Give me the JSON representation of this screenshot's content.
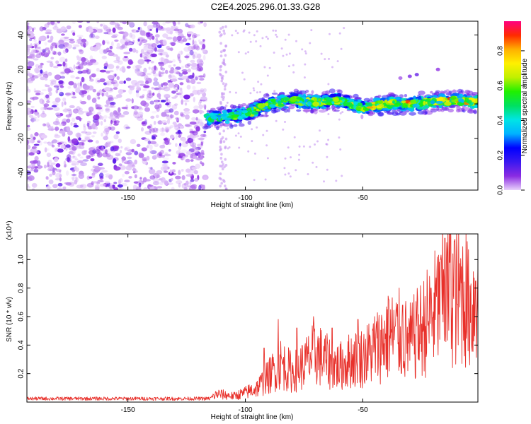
{
  "title": "C2E4.2025.296.01.33.G28",
  "chart_data": [
    {
      "type": "heatmap",
      "xlabel": "Height of straight line (km)",
      "ylabel": "Frequency (Hz)",
      "xlim": [
        -193,
        -1
      ],
      "ylim": [
        -50,
        48
      ],
      "xticks": [
        -150,
        -100,
        -50
      ],
      "yticks": [
        -40,
        -20,
        0,
        20,
        40
      ],
      "ridge": [
        {
          "x": -117,
          "y": -8
        },
        {
          "x": -110,
          "y": -8
        },
        {
          "x": -100,
          "y": -6
        },
        {
          "x": -90,
          "y": 0
        },
        {
          "x": -80,
          "y": 2
        },
        {
          "x": -70,
          "y": 1
        },
        {
          "x": -60,
          "y": 2
        },
        {
          "x": -50,
          "y": -2
        },
        {
          "x": -40,
          "y": 0
        },
        {
          "x": -30,
          "y": 0
        },
        {
          "x": -20,
          "y": 1
        },
        {
          "x": -10,
          "y": 2
        },
        {
          "x": -1,
          "y": 1
        }
      ],
      "colorbar": {
        "label": "Normalized spectral amplitude",
        "range": [
          0,
          0.97
        ],
        "ticks": [
          "0.0",
          "0.2",
          "0.4",
          "0.6",
          "0.8"
        ],
        "stops": [
          "#e9d2fb",
          "#8a2be2",
          "#3a18f0",
          "#0000ff",
          "#00b2ff",
          "#00e5e5",
          "#00e060",
          "#20f000",
          "#c0f000",
          "#fff000",
          "#ffb000",
          "#ff2a00",
          "#ff0080"
        ]
      }
    },
    {
      "type": "line",
      "xlabel": "Height of straight line (km)",
      "ylabel": "SNR (10 * v/v)",
      "scale_label": "(x10⁴)",
      "xlim": [
        -193,
        -1
      ],
      "ylim": [
        0,
        1.18
      ],
      "xticks": [
        -150,
        -100,
        -50
      ],
      "yticks": [
        "0.2",
        "0.4",
        "0.6",
        "0.8",
        "1.0"
      ],
      "series": [
        {
          "name": "SNR",
          "color": "#e8302a",
          "envelope": [
            {
              "x": -193,
              "y": 0.02
            },
            {
              "x": -160,
              "y": 0.03
            },
            {
              "x": -115,
              "y": 0.03
            },
            {
              "x": -112,
              "y": 0.07
            },
            {
              "x": -105,
              "y": 0.05
            },
            {
              "x": -100,
              "y": 0.08
            },
            {
              "x": -95,
              "y": 0.12
            },
            {
              "x": -90,
              "y": 0.22
            },
            {
              "x": -85,
              "y": 0.33
            },
            {
              "x": -80,
              "y": 0.25
            },
            {
              "x": -75,
              "y": 0.32
            },
            {
              "x": -70,
              "y": 0.42
            },
            {
              "x": -65,
              "y": 0.34
            },
            {
              "x": -60,
              "y": 0.3
            },
            {
              "x": -55,
              "y": 0.36
            },
            {
              "x": -50,
              "y": 0.38
            },
            {
              "x": -45,
              "y": 0.45
            },
            {
              "x": -40,
              "y": 0.55
            },
            {
              "x": -35,
              "y": 0.58
            },
            {
              "x": -30,
              "y": 0.5
            },
            {
              "x": -25,
              "y": 0.62
            },
            {
              "x": -20,
              "y": 0.75
            },
            {
              "x": -16,
              "y": 0.9
            },
            {
              "x": -13,
              "y": 0.95
            },
            {
              "x": -10,
              "y": 0.88
            },
            {
              "x": -7,
              "y": 0.93
            },
            {
              "x": -4,
              "y": 0.8
            },
            {
              "x": -1,
              "y": 0.9
            }
          ],
          "peaks": [
            {
              "x": -92,
              "y": 0.38
            },
            {
              "x": -86,
              "y": 0.58
            },
            {
              "x": -78,
              "y": 0.52
            },
            {
              "x": -71,
              "y": 0.6
            },
            {
              "x": -63,
              "y": 0.52
            },
            {
              "x": -52,
              "y": 0.58
            },
            {
              "x": -45,
              "y": 0.6
            },
            {
              "x": -39,
              "y": 0.72
            },
            {
              "x": -33,
              "y": 0.68
            },
            {
              "x": -27,
              "y": 0.62
            },
            {
              "x": -21,
              "y": 0.8
            },
            {
              "x": -17,
              "y": 1.0
            },
            {
              "x": -15,
              "y": 1.15
            },
            {
              "x": -13,
              "y": 0.98
            },
            {
              "x": -11,
              "y": 1.13
            },
            {
              "x": -8,
              "y": 0.95
            },
            {
              "x": -5,
              "y": 1.07
            },
            {
              "x": -2,
              "y": 0.85
            },
            {
              "x": -1,
              "y": 0.95
            }
          ]
        }
      ]
    }
  ]
}
